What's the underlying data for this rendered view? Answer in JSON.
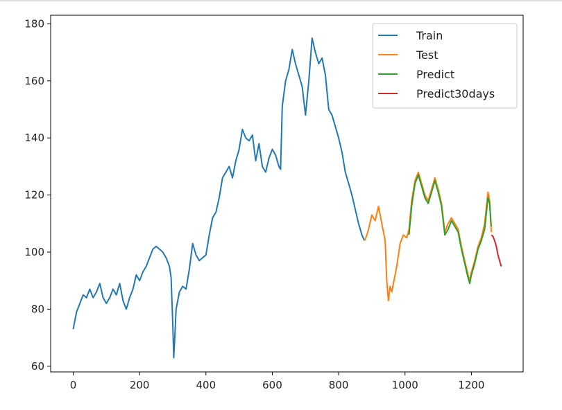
{
  "chart_data": {
    "type": "line",
    "title": "",
    "xlabel": "",
    "ylabel": "",
    "xlim": [
      -68,
      1356
    ],
    "ylim": [
      58,
      183
    ],
    "x_ticks": [
      0,
      200,
      400,
      600,
      800,
      1000,
      1200
    ],
    "y_ticks": [
      60,
      80,
      100,
      120,
      140,
      160,
      180
    ],
    "grid": false,
    "legend_position": "top-right",
    "series": [
      {
        "name": "Train",
        "color": "#1f77b4",
        "points": [
          [
            0,
            73
          ],
          [
            5,
            76
          ],
          [
            10,
            79
          ],
          [
            20,
            82
          ],
          [
            30,
            85
          ],
          [
            40,
            84
          ],
          [
            50,
            87
          ],
          [
            60,
            84
          ],
          [
            70,
            86
          ],
          [
            80,
            89
          ],
          [
            90,
            84
          ],
          [
            100,
            82
          ],
          [
            110,
            84
          ],
          [
            120,
            87
          ],
          [
            130,
            85
          ],
          [
            140,
            89
          ],
          [
            150,
            83
          ],
          [
            160,
            80
          ],
          [
            170,
            84
          ],
          [
            180,
            87
          ],
          [
            190,
            92
          ],
          [
            200,
            90
          ],
          [
            210,
            93
          ],
          [
            220,
            95
          ],
          [
            230,
            98
          ],
          [
            240,
            101
          ],
          [
            250,
            102
          ],
          [
            260,
            101
          ],
          [
            270,
            100
          ],
          [
            280,
            98
          ],
          [
            290,
            95
          ],
          [
            295,
            91
          ],
          [
            300,
            75
          ],
          [
            303,
            63
          ],
          [
            306,
            70
          ],
          [
            310,
            80
          ],
          [
            320,
            86
          ],
          [
            330,
            88
          ],
          [
            340,
            87
          ],
          [
            350,
            94
          ],
          [
            360,
            103
          ],
          [
            370,
            99
          ],
          [
            380,
            97
          ],
          [
            390,
            98
          ],
          [
            400,
            99
          ],
          [
            410,
            106
          ],
          [
            420,
            112
          ],
          [
            430,
            114
          ],
          [
            440,
            119
          ],
          [
            450,
            126
          ],
          [
            460,
            128
          ],
          [
            470,
            130
          ],
          [
            480,
            126
          ],
          [
            490,
            132
          ],
          [
            500,
            136
          ],
          [
            510,
            143
          ],
          [
            520,
            140
          ],
          [
            530,
            139
          ],
          [
            540,
            141
          ],
          [
            550,
            132
          ],
          [
            560,
            138
          ],
          [
            570,
            130
          ],
          [
            580,
            128
          ],
          [
            590,
            133
          ],
          [
            600,
            136
          ],
          [
            610,
            134
          ],
          [
            620,
            130
          ],
          [
            625,
            129
          ],
          [
            630,
            151
          ],
          [
            640,
            160
          ],
          [
            650,
            164
          ],
          [
            660,
            171
          ],
          [
            670,
            166
          ],
          [
            680,
            162
          ],
          [
            690,
            158
          ],
          [
            700,
            148
          ],
          [
            710,
            160
          ],
          [
            720,
            175
          ],
          [
            730,
            170
          ],
          [
            740,
            166
          ],
          [
            750,
            168
          ],
          [
            760,
            162
          ],
          [
            770,
            150
          ],
          [
            780,
            148
          ],
          [
            790,
            144
          ],
          [
            800,
            140
          ],
          [
            810,
            135
          ],
          [
            820,
            128
          ],
          [
            830,
            124
          ],
          [
            840,
            120
          ],
          [
            850,
            115
          ],
          [
            860,
            110
          ],
          [
            870,
            106
          ],
          [
            878,
            104
          ]
        ]
      },
      {
        "name": "Test",
        "color": "#ff7f0e",
        "points": [
          [
            878,
            104
          ],
          [
            885,
            106
          ],
          [
            890,
            108
          ],
          [
            900,
            113
          ],
          [
            910,
            111
          ],
          [
            920,
            116
          ],
          [
            930,
            110
          ],
          [
            940,
            104
          ],
          [
            945,
            90
          ],
          [
            950,
            83
          ],
          [
            955,
            88
          ],
          [
            960,
            86
          ],
          [
            965,
            89
          ],
          [
            975,
            95
          ],
          [
            985,
            103
          ],
          [
            995,
            106
          ],
          [
            1005,
            105
          ],
          [
            1012,
            108
          ],
          [
            1020,
            118
          ],
          [
            1030,
            125
          ],
          [
            1040,
            128
          ],
          [
            1050,
            124
          ],
          [
            1060,
            120
          ],
          [
            1070,
            118
          ],
          [
            1080,
            122
          ],
          [
            1090,
            126
          ],
          [
            1100,
            122
          ],
          [
            1110,
            117
          ],
          [
            1120,
            107
          ],
          [
            1130,
            110
          ],
          [
            1140,
            112
          ],
          [
            1150,
            110
          ],
          [
            1160,
            108
          ],
          [
            1170,
            102
          ],
          [
            1180,
            97
          ],
          [
            1190,
            92
          ],
          [
            1195,
            90
          ],
          [
            1200,
            93
          ],
          [
            1210,
            97
          ],
          [
            1220,
            102
          ],
          [
            1230,
            105
          ],
          [
            1240,
            110
          ],
          [
            1250,
            121
          ],
          [
            1255,
            118
          ],
          [
            1258,
            111
          ],
          [
            1260,
            107
          ]
        ]
      },
      {
        "name": "Predict",
        "color": "#2ca02c",
        "points": [
          [
            1012,
            106
          ],
          [
            1020,
            116
          ],
          [
            1030,
            124
          ],
          [
            1040,
            127
          ],
          [
            1050,
            123
          ],
          [
            1060,
            119
          ],
          [
            1070,
            117
          ],
          [
            1080,
            121
          ],
          [
            1090,
            125
          ],
          [
            1100,
            121
          ],
          [
            1110,
            116
          ],
          [
            1120,
            106
          ],
          [
            1130,
            108
          ],
          [
            1140,
            111
          ],
          [
            1150,
            109
          ],
          [
            1160,
            107
          ],
          [
            1170,
            101
          ],
          [
            1180,
            96
          ],
          [
            1190,
            91
          ],
          [
            1195,
            89
          ],
          [
            1200,
            92
          ],
          [
            1210,
            96
          ],
          [
            1220,
            101
          ],
          [
            1230,
            104
          ],
          [
            1240,
            108
          ],
          [
            1250,
            119
          ],
          [
            1255,
            117
          ],
          [
            1258,
            112
          ],
          [
            1260,
            109
          ]
        ]
      },
      {
        "name": "Predict30days",
        "color": "#d62728",
        "points": [
          [
            1260,
            106
          ],
          [
            1265,
            105.5
          ],
          [
            1270,
            104
          ],
          [
            1275,
            102
          ],
          [
            1280,
            99
          ],
          [
            1285,
            97
          ],
          [
            1290,
            95
          ]
        ]
      }
    ]
  }
}
